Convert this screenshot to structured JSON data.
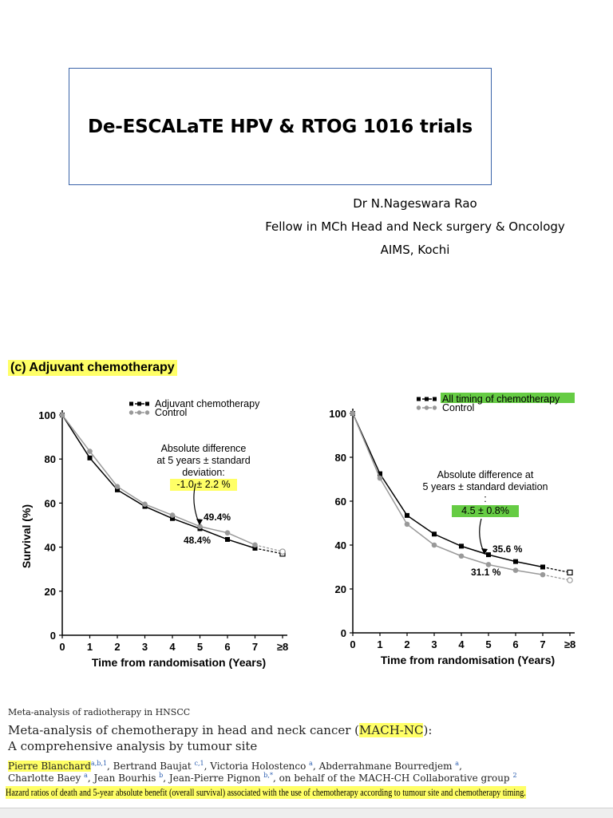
{
  "slide": {
    "title": "De-ESCALaTE HPV & RTOG 1016 trials",
    "author_lines": [
      "Dr N.Nageswara Rao",
      "Fellow in MCh Head and Neck surgery & Oncology",
      "AIMS, Kochi"
    ]
  },
  "panel_label": "(c) Adjuvant chemotherapy",
  "chart_data": [
    {
      "type": "line",
      "xlabel": "Time from randomisation (Years)",
      "ylabel": "Survival (%)",
      "x_ticks": [
        "0",
        "1",
        "2",
        "3",
        "4",
        "5",
        "6",
        "7",
        "≥8"
      ],
      "y_ticks": [
        "0",
        "20",
        "40",
        "60",
        "80",
        "100"
      ],
      "ylim": [
        0,
        100
      ],
      "x": [
        0,
        1,
        2,
        3,
        4,
        5,
        6,
        7,
        8
      ],
      "series": [
        {
          "name": "Adjuvant chemotherapy",
          "values": [
            100,
            80.5,
            66,
            58.5,
            53,
            48.4,
            43.5,
            39.5,
            37
          ],
          "color": "#000000"
        },
        {
          "name": "Control",
          "values": [
            100,
            83.5,
            67.5,
            59.5,
            54.5,
            49.4,
            46.5,
            41,
            38
          ],
          "color": "#999999"
        }
      ],
      "annotation": {
        "lines": [
          "Absolute difference",
          "at 5 years ± standard",
          "deviation:"
        ],
        "value": "-1.0 ± 2.2 %",
        "highlight": "#ffff66"
      },
      "point_labels": [
        "49.4%",
        "48.4%"
      ],
      "legend": "top"
    },
    {
      "type": "line",
      "xlabel": "Time from randomisation (Years)",
      "x_ticks": [
        "0",
        "1",
        "2",
        "3",
        "4",
        "5",
        "6",
        "7",
        "≥8"
      ],
      "y_ticks": [
        "0",
        "20",
        "40",
        "60",
        "80",
        "100"
      ],
      "ylim": [
        0,
        100
      ],
      "x": [
        0,
        1,
        2,
        3,
        4,
        5,
        6,
        7,
        8
      ],
      "series": [
        {
          "name": "All timing of chemotherapy",
          "values": [
            100,
            72.5,
            53.5,
            45,
            39.5,
            35.6,
            32.5,
            30,
            27.5
          ],
          "color": "#000000",
          "highlight": "#66cc44"
        },
        {
          "name": "Control",
          "values": [
            100,
            70.5,
            49.5,
            40,
            35,
            31.1,
            28.5,
            26.5,
            24
          ],
          "color": "#999999"
        }
      ],
      "annotation": {
        "lines": [
          "Absolute difference at",
          "5 years ±  standard deviation",
          ":"
        ],
        "value": "4.5 ± 0.8%",
        "highlight": "#66cc44"
      },
      "point_labels": [
        "35.6 %",
        "31.1 %"
      ],
      "legend": "top"
    }
  ],
  "footer": {
    "journal": "Meta-analysis of radiotherapy in HNSCC",
    "title_line1_pre": "Meta-analysis of chemotherapy in head and neck cancer (",
    "title_line1_hl": "MACH-NC",
    "title_line1_post": "):",
    "title_line2": "A comprehensive analysis by tumour site",
    "authors_line1": [
      {
        "name": "Pierre Blanchard",
        "sup": "a,b,1",
        "hl": true
      },
      {
        "name": ", Bertrand Baujat ",
        "sup": "c,1"
      },
      {
        "name": ", Victoria Holostenco ",
        "sup": "a"
      },
      {
        "name": ", Abderrahmane Bourredjem ",
        "sup": "a"
      },
      {
        "name": ",",
        "sup": ""
      }
    ],
    "authors_line2": [
      {
        "name": "Charlotte Baey ",
        "sup": "a"
      },
      {
        "name": ", Jean Bourhis ",
        "sup": "b"
      },
      {
        "name": ", Jean-Pierre Pignon ",
        "sup": "b,*"
      },
      {
        "name": ", on behalf of the MACH-CH Collaborative group ",
        "sup": "2"
      }
    ],
    "caption": "Hazard ratios of death and 5-year absolute benefit (overall survival) associated with the use of chemotherapy according to tumour site and chemotherapy timing."
  }
}
